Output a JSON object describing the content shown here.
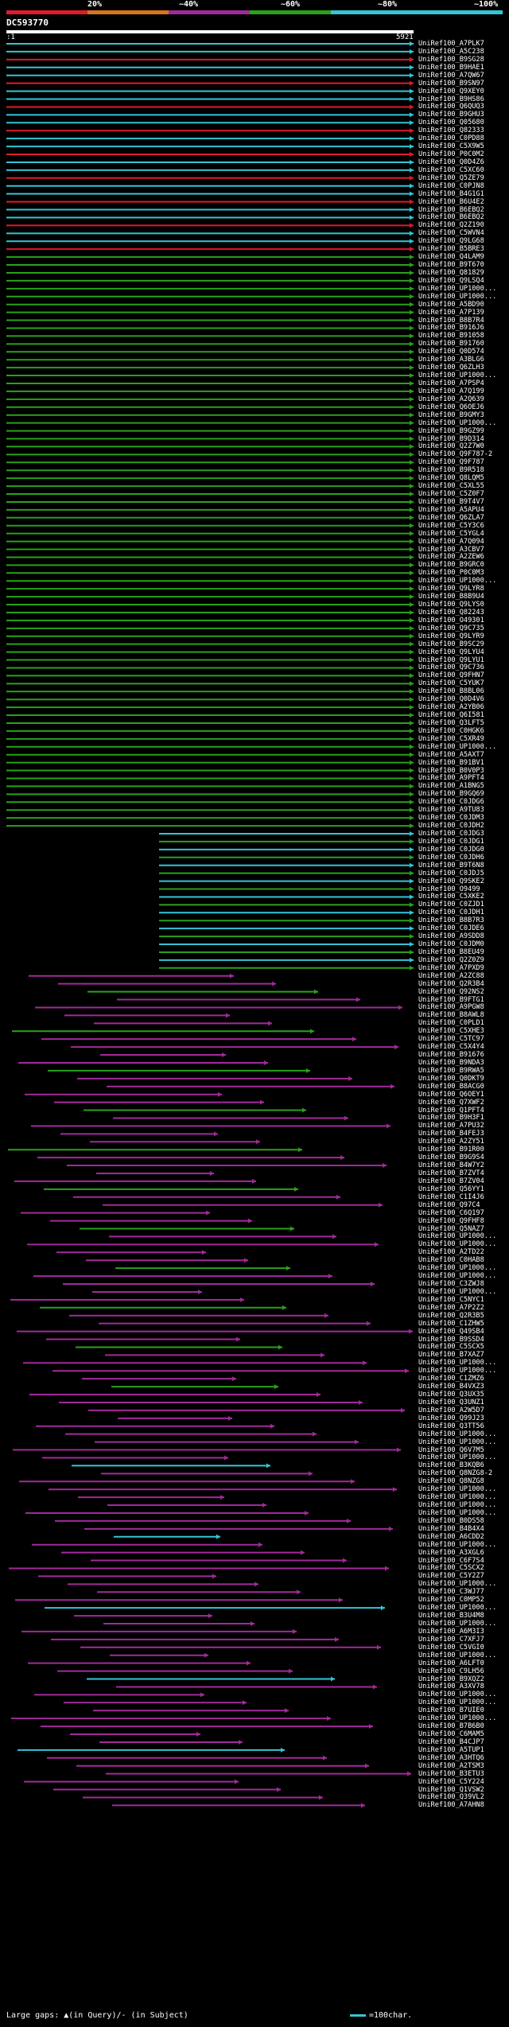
{
  "legend": {
    "labels": [
      "20%",
      "~40%",
      "~60%",
      "~80%",
      "~100%"
    ],
    "colors": [
      "#e01b2b",
      "#d8741a",
      "#a22a9a",
      "#2aa11b",
      "#33c6d6"
    ]
  },
  "query": {
    "id": "DC593770",
    "start": ":1",
    "end": "5921"
  },
  "hits": [
    "UniRef100_A7PLK7",
    "UniRef100_A5C238",
    "UniRef100_B9SG28",
    "UniRef100_B9HAE1",
    "UniRef100_A7QW67",
    "UniRef100_B9SN97",
    "UniRef100_Q9XEY0",
    "UniRef100_B9HS86",
    "UniRef100_Q6QUQ3",
    "UniRef100_B9GHU3",
    "UniRef100_Q05680",
    "UniRef100_Q82333",
    "UniRef100_C0PD88",
    "UniRef100_C5X9W5",
    "UniRef100_P0C0M2",
    "UniRef100_Q0D4Z6",
    "UniRef100_C5XC60",
    "UniRef100_Q5ZE79",
    "UniRef100_C0PJN8",
    "UniRef100_B4G1G1",
    "UniRef100_B6U4E2",
    "UniRef100_B6EBQ2",
    "UniRef100_B6EBQ2",
    "UniRef100_Q2Z190",
    "UniRef100_C5WVN4",
    "UniRef100_Q9LG68",
    "UniRef100_B5BRE3",
    "UniRef100_Q4LAM9",
    "UniRef100_B9T670",
    "UniRef100_Q81829",
    "UniRef100_Q9LSQ4",
    "UniRef100_UP1000...",
    "UniRef100_UP1000...",
    "UniRef100_A5BD90",
    "UniRef100_A7P139",
    "UniRef100_B8B7R4",
    "UniRef100_B916J6",
    "UniRef100_B91058",
    "UniRef100_B91760",
    "UniRef100_Q0D574",
    "UniRef100_A3BLG6",
    "UniRef100_Q6ZLH3",
    "UniRef100_UP1000...",
    "UniRef100_A7PSP4",
    "UniRef100_A7Q199",
    "UniRef100_A2Q639",
    "UniRef100_Q6OEJ6",
    "UniRef100_B9GMY3",
    "UniRef100_UP1000...",
    "UniRef100_B9GZ99",
    "UniRef100_B9D314",
    "UniRef100_Q2Z7W0",
    "UniRef100_Q9F787-2",
    "UniRef100_Q9F787",
    "UniRef100_B9R518",
    "UniRef100_Q8LQM5",
    "UniRef100_C5XL55",
    "UniRef100_C5Z0F7",
    "UniRef100_B9T4V7",
    "UniRef100_A5APU4",
    "UniRef100_Q6ZLA7",
    "UniRef100_C5Y3C6",
    "UniRef100_C5YGL4",
    "UniRef100_A7Q094",
    "UniRef100_A3CBV7",
    "UniRef100_A2ZEW6",
    "UniRef100_B9GRC0",
    "UniRef100_P0C0M3",
    "UniRef100_UP1000...",
    "UniRef100_Q9LYR8",
    "UniRef100_B8B9U4",
    "UniRef100_Q9LYS0",
    "UniRef100_Q82243",
    "UniRef100_O49301",
    "UniRef100_Q9C735",
    "UniRef100_Q9LYR9",
    "UniRef100_B9SC29",
    "UniRef100_Q9LYU4",
    "UniRef100_Q9LYU1",
    "UniRef100_Q9C736",
    "UniRef100_Q9FHN7",
    "UniRef100_C5YUK7",
    "UniRef100_B8BL06",
    "UniRef100_Q0D4V6",
    "UniRef100_A2YB06",
    "UniRef100_Q6I581",
    "UniRef100_Q3LFT5",
    "UniRef100_C0HGK6",
    "UniRef100_C5XR49",
    "UniRef100_UP1000...",
    "UniRef100_A5AXT7",
    "UniRef100_B91BV1",
    "UniRef100_B0V0P3",
    "UniRef100_A9PFT4",
    "UniRef100_A1BNG5",
    "UniRef100_B9GQ69",
    "UniRef100_C0JDG6",
    "UniRef100_A9TU83",
    "UniRef100_C0JDM3",
    "UniRef100_C0JDH2",
    "UniRef100_C0JDG3",
    "UniRef100_C0JDG1",
    "UniRef100_C0JDG0",
    "UniRef100_C0JDH6",
    "UniRef100_B9T6N8",
    "UniRef100_C0JDJ5",
    "UniRef100_Q9SKE2",
    "UniRef100_O9499",
    "UniRef100_C5XKE2",
    "UniRef100_C0ZJD1",
    "UniRef100_C0JDH1",
    "UniRef100_B8B7R3",
    "UniRef100_C0JDE6",
    "UniRef100_A9SDD8",
    "UniRef100_C0JDM0",
    "UniRef100_B8EU49",
    "UniRef100_Q2Z0Z9",
    "UniRef100_A7PXD9",
    "UniRef100_A2ZC88",
    "UniRef100_Q2R3B4",
    "UniRef100_Q92NS2",
    "UniRef100_B9FTG1",
    "UniRef100_A9PGW8",
    "UniRef100_B8AWL8",
    "UniRef100_C0PLD1",
    "UniRef100_C5XHE3",
    "UniRef100_C5TC97",
    "UniRef100_C5X4Y4",
    "UniRef100_B91676",
    "UniRef100_B9NDA3",
    "UniRef100_B9RWA5",
    "UniRef100_Q0DKT9",
    "UniRef100_B8ACG0",
    "UniRef100_Q6OEY1",
    "UniRef100_Q7XWF2",
    "UniRef100_Q1PFT4",
    "UniRef100_B9H3F1",
    "UniRef100_A7PU32",
    "UniRef100_B4FEJ3",
    "UniRef100_A2ZY51",
    "UniRef100_B91R00",
    "UniRef100_B9G9S4",
    "UniRef100_B4W7Y2",
    "UniRef100_B7ZVT4",
    "UniRef100_B7ZV04",
    "UniRef100_Q56YY1",
    "UniRef100_C1I4J6",
    "UniRef100_Q97C4",
    "UniRef100_C6Q197",
    "UniRef100_Q9FHF8",
    "UniRef100_Q5NAZ7",
    "UniRef100_UP1000...",
    "UniRef100_UP1000...",
    "UniRef100_A2TD22",
    "UniRef100_C0HAB8",
    "UniRef100_UP1000...",
    "UniRef100_UP1000...",
    "UniRef100_C3ZWJ8",
    "UniRef100_UP1000...",
    "UniRef100_C5NYC1",
    "UniRef100_A7P2Z2",
    "UniRef100_Q2R3B5",
    "UniRef100_C1ZHW5",
    "UniRef100_Q49SB4",
    "UniRef100_B9SSD4",
    "UniRef100_C5SCX5",
    "UniRef100_B7XAZ7",
    "UniRef100_UP1000...",
    "UniRef100_UP1000...",
    "UniRef100_C1ZMZ6",
    "UniRef100_B4VXZ3",
    "UniRef100_Q3UX35",
    "UniRef100_Q3UNZ1",
    "UniRef100_A2W5D7",
    "UniRef100_Q99J23",
    "UniRef100_Q3TT56",
    "UniRef100_UP1000...",
    "UniRef100_UP1000...",
    "UniRef100_Q6V7M5",
    "UniRef100_UP1000...",
    "UniRef100_B3KQB6",
    "UniRef100_Q8NZG8-2",
    "UniRef100_Q8NZG8",
    "UniRef100_UP1000...",
    "UniRef100_UP1000...",
    "UniRef100_UP1000...",
    "UniRef100_UP1000...",
    "UniRef100_B0DS58",
    "UniRef100_B4B4X4",
    "UniRef100_A6CDD2",
    "UniRef100_UP1000...",
    "UniRef100_A3XGL6",
    "UniRef100_C6F7S4",
    "UniRef100_C5SCX2",
    "UniRef100_C5Y2Z7",
    "UniRef100_UP1000...",
    "UniRef100_C3WJ77",
    "UniRef100_C0MP52",
    "UniRef100_UP1000...",
    "UniRef100_B3U4M8",
    "UniRef100_UP1000...",
    "UniRef100_A6M3I3",
    "UniRef100_C7XFJ7",
    "UniRef100_C5VGI0",
    "UniRef100_UP1000...",
    "UniRef100_A6LFT0",
    "UniRef100_C9LH56",
    "UniRef100_B9XQZ2",
    "UniRef100_A3XV78",
    "UniRef100_UP1000...",
    "UniRef100_UP1000...",
    "UniRef100_B7UIE0",
    "UniRef100_UP1000...",
    "UniRef100_B7B6B0",
    "UniRef100_C6MAM5",
    "UniRef100_B4CJP7",
    "UniRef100_A5TUP1",
    "UniRef100_A3HTQ6",
    "UniRef100_A2TSM3",
    "UniRef100_B3ETU3",
    "UniRef100_C5Y224",
    "UniRef100_Q1VSW2",
    "UniRef100_Q39VL2",
    "UniRef100_A7AHN8"
  ],
  "footer": {
    "large_gaps": "Large gaps: ▲(in Query)/- (in Subject)",
    "scale": "=100char."
  }
}
